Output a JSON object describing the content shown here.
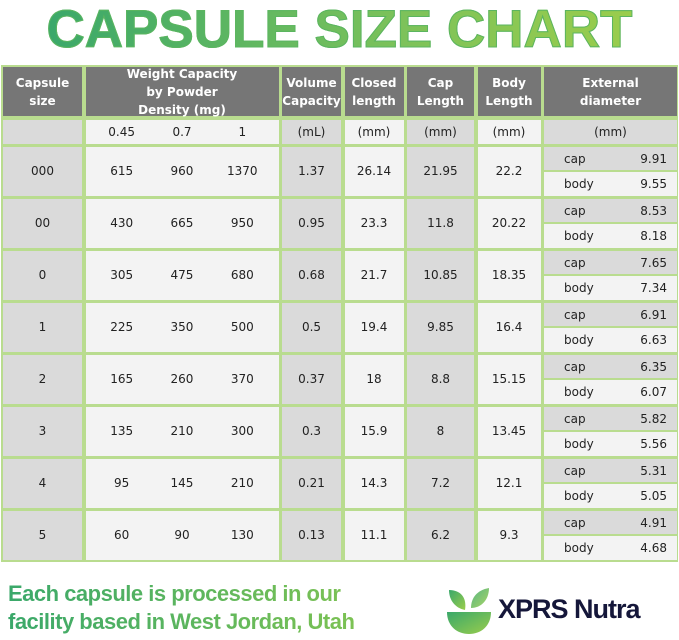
{
  "title": "CAPSULE SIZE CHART",
  "table": {
    "headers": {
      "capsule_size": "Capsule size",
      "weight": "Weight Capacity by Powder Density (mg)",
      "volume": "Volume Capacity",
      "closed": "Closed length",
      "cap": "Cap Length",
      "body": "Body Length",
      "ext": "External diameter"
    },
    "units": {
      "capsule_size": "",
      "densities": [
        "0.45",
        "0.7",
        "1"
      ],
      "volume": "(mL)",
      "closed": "(mm)",
      "cap": "(mm)",
      "body": "(mm)",
      "ext": "(mm)"
    },
    "ext_labels": {
      "cap": "cap",
      "body": "body"
    },
    "rows": [
      {
        "size": "000",
        "w": [
          "615",
          "960",
          "1370"
        ],
        "volume": "1.37",
        "closed": "26.14",
        "cap": "21.95",
        "body": "22.2",
        "ext_cap": "9.91",
        "ext_body": "9.55"
      },
      {
        "size": "00",
        "w": [
          "430",
          "665",
          "950"
        ],
        "volume": "0.95",
        "closed": "23.3",
        "cap": "11.8",
        "body": "20.22",
        "ext_cap": "8.53",
        "ext_body": "8.18"
      },
      {
        "size": "0",
        "w": [
          "305",
          "475",
          "680"
        ],
        "volume": "0.68",
        "closed": "21.7",
        "cap": "10.85",
        "body": "18.35",
        "ext_cap": "7.65",
        "ext_body": "7.34"
      },
      {
        "size": "1",
        "w": [
          "225",
          "350",
          "500"
        ],
        "volume": "0.5",
        "closed": "19.4",
        "cap": "9.85",
        "body": "16.4",
        "ext_cap": "6.91",
        "ext_body": "6.63"
      },
      {
        "size": "2",
        "w": [
          "165",
          "260",
          "370"
        ],
        "volume": "0.37",
        "closed": "18",
        "cap": "8.8",
        "body": "15.15",
        "ext_cap": "6.35",
        "ext_body": "6.07"
      },
      {
        "size": "3",
        "w": [
          "135",
          "210",
          "300"
        ],
        "volume": "0.3",
        "closed": "15.9",
        "cap": "8",
        "body": "13.45",
        "ext_cap": "5.82",
        "ext_body": "5.56"
      },
      {
        "size": "4",
        "w": [
          "95",
          "145",
          "210"
        ],
        "volume": "0.21",
        "closed": "14.3",
        "cap": "7.2",
        "body": "12.1",
        "ext_cap": "5.31",
        "ext_body": "5.05"
      },
      {
        "size": "5",
        "w": [
          "60",
          "90",
          "130"
        ],
        "volume": "0.13",
        "closed": "11.1",
        "cap": "6.2",
        "body": "9.3",
        "ext_cap": "4.91",
        "ext_body": "4.68"
      }
    ]
  },
  "footer": {
    "line1": "Each capsule is processed in our",
    "line2": "facility based in West Jordan, Utah",
    "brand": "XPRS Nutra",
    "logo_icon": "leaf-bowl-icon"
  },
  "colors": {
    "border_green": "#b9dc8f",
    "header_gray": "#767676",
    "brand_navy": "#15173a",
    "title_green": "#5bb560"
  }
}
